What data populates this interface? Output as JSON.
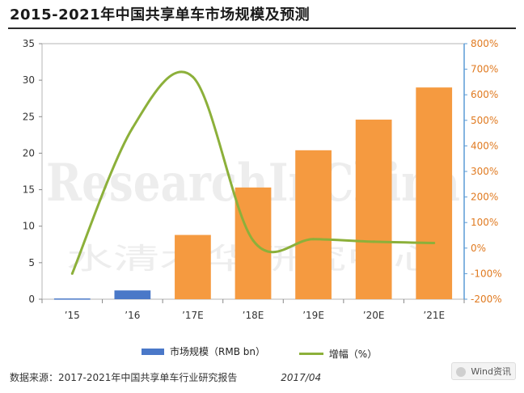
{
  "title": "2015-2021年中国共享单车市场规模及预测",
  "source": "数据来源：2017-2021年中国共享单车行业研究报告",
  "date": "2017/04",
  "watermark": "ResearchInChina",
  "watermark_cn": "水清木华研究中心",
  "badge": "Wind资讯",
  "colors": {
    "bar_actual": "#4a78c8",
    "bar_forecast": "#f59a40",
    "line": "#8cb03a",
    "right_axis": "#e07a20"
  },
  "chart_data": {
    "type": "bar",
    "categories": [
      "’15",
      "’16",
      "’17E",
      "’18E",
      "’19E",
      "’20E",
      "’21E"
    ],
    "series": [
      {
        "name": "市场规模（RMB bn）",
        "type": "bar",
        "axis": "left",
        "values": [
          0.1,
          1.2,
          8.8,
          15.3,
          20.4,
          24.6,
          29.0
        ]
      },
      {
        "name": "增幅（%）",
        "type": "line",
        "axis": "right",
        "values": [
          -100,
          470,
          670,
          30,
          35,
          25,
          20
        ]
      }
    ],
    "ylim": [
      0,
      35
    ],
    "yticks": [
      "0",
      "5",
      "10",
      "15",
      "20",
      "25",
      "30",
      "35"
    ],
    "y2lim": [
      -200,
      800
    ],
    "y2ticks": [
      "-200%",
      "-100%",
      "0%",
      "100%",
      "200%",
      "300%",
      "400%",
      "500%",
      "600%",
      "700%",
      "800%"
    ],
    "legend": "bottom"
  }
}
